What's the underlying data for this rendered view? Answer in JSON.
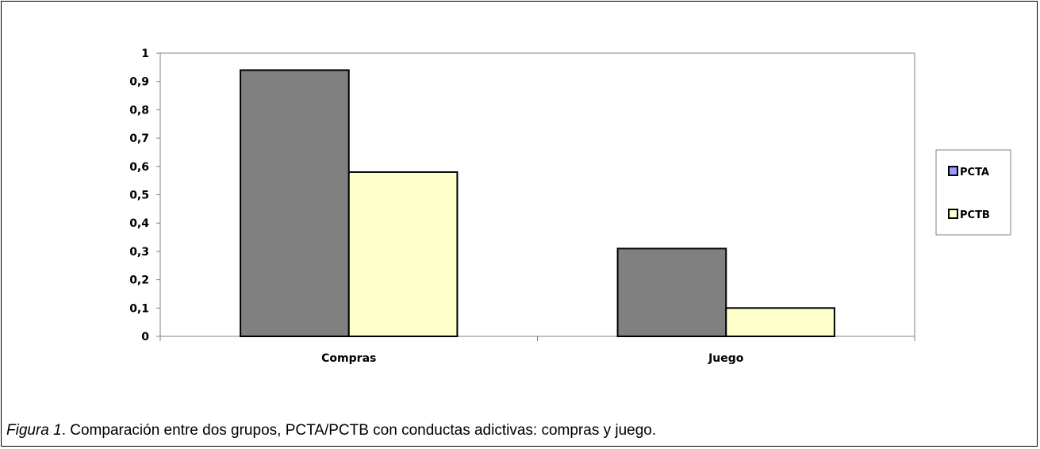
{
  "chart_data": {
    "type": "bar",
    "categories": [
      "Compras",
      "Juego"
    ],
    "series": [
      {
        "name": "PCTA",
        "values": [
          0.94,
          0.31
        ],
        "color": "#808080",
        "legend_color": "#9999ff"
      },
      {
        "name": "PCTB",
        "values": [
          0.58,
          0.1
        ],
        "color": "#ffffcc",
        "legend_color": "#ffffcc"
      }
    ],
    "ylim": [
      0,
      1
    ],
    "yticks": [
      "0",
      "0,1",
      "0,2",
      "0,3",
      "0,4",
      "0,5",
      "0,6",
      "0,7",
      "0,8",
      "0,9",
      "1"
    ],
    "grid": false,
    "legend_position": "right",
    "title": "",
    "xlabel": "",
    "ylabel": ""
  },
  "caption": {
    "figure_label": "Figura 1",
    "text": ". Comparación entre dos grupos, PCTA/PCTB con conductas adictivas: compras y juego."
  }
}
